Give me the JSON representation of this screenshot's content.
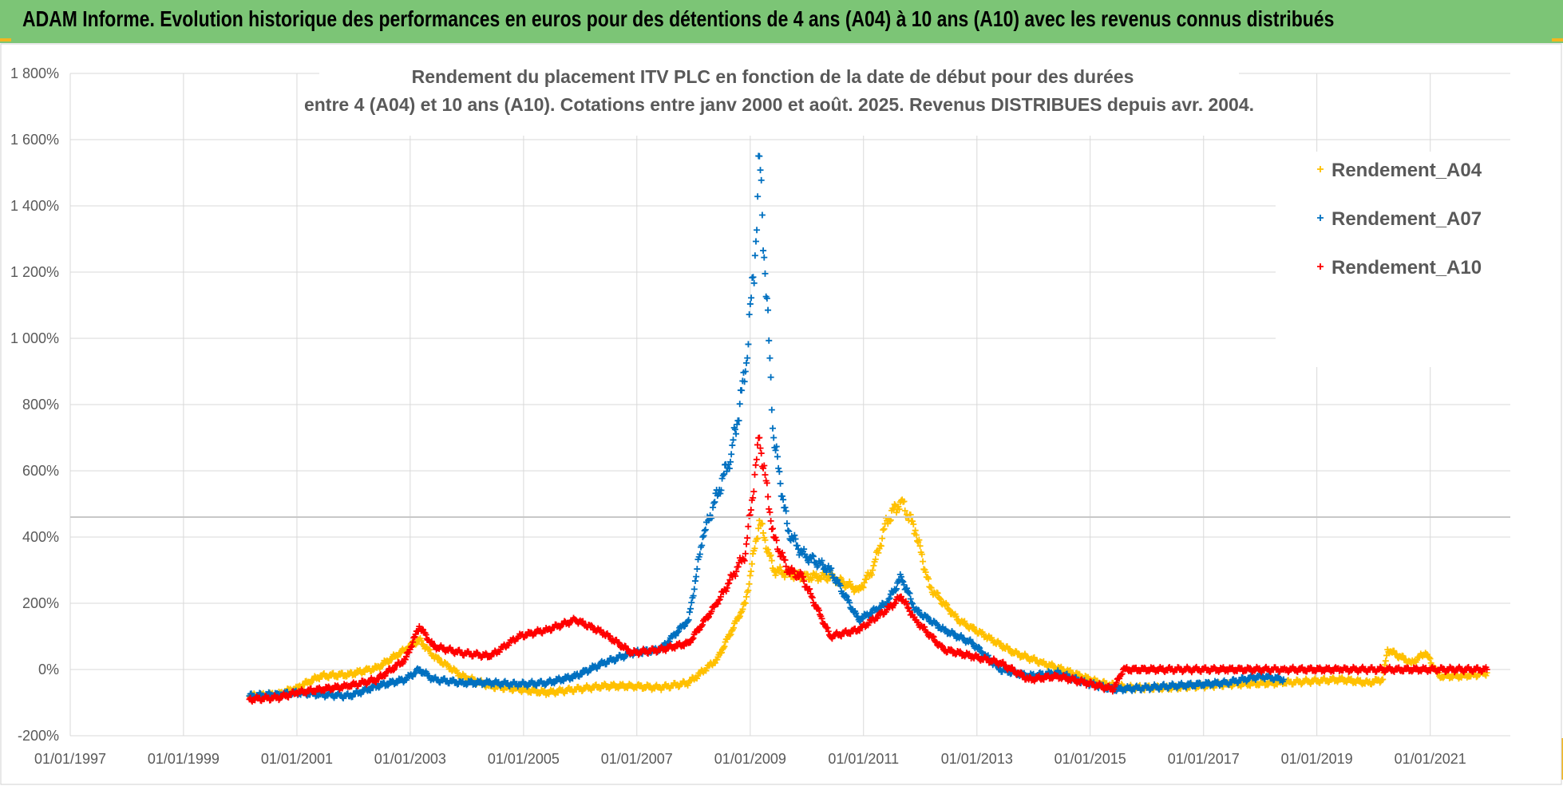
{
  "header": {
    "banner_title": "ADAM Informe. Evolution historique des performances en euros pour des détentions de 4 ans (A04) à 10 ans (A10) avec les revenus connus distribués"
  },
  "colors": {
    "banner_bg": "#7cc576",
    "accent": "#f2b61f",
    "A04": "#ffc000",
    "A07": "#0070c0",
    "A10": "#ff0000",
    "grid": "#d9d9d9",
    "text": "#595959"
  },
  "chart_data": {
    "type": "scatter",
    "title_line1": "Rendement du placement ITV PLC en fonction de la date de début pour des durées",
    "title_line2": "entre 4 (A04) et 10 ans (A10).  Cotations entre janv 2000 et août. 2025. Revenus DISTRIBUES depuis avr. 2004.",
    "xlabel": "",
    "ylabel": "",
    "xlim": [
      "1997-01-01",
      "2022-06-01"
    ],
    "ylim": [
      -200,
      1800
    ],
    "y_unit": "%",
    "x_tick_labels": [
      "01/01/1997",
      "01/01/1999",
      "01/01/2001",
      "01/01/2003",
      "01/01/2005",
      "01/01/2007",
      "01/01/2009",
      "01/01/2011",
      "01/01/2013",
      "01/01/2015",
      "01/01/2017",
      "01/01/2019",
      "01/01/2021"
    ],
    "y_tick_labels": [
      "-200%",
      "0%",
      "200%",
      "400%",
      "600%",
      "800%",
      "1 000%",
      "1 200%",
      "1 400%",
      "1 600%",
      "1 800%"
    ],
    "y_ticks": [
      -200,
      0,
      200,
      400,
      600,
      800,
      1000,
      1200,
      1400,
      1600,
      1800
    ],
    "grid": true,
    "marker": "+",
    "legend_position": "right",
    "series": [
      {
        "name": "Rendement_A04",
        "color": "#ffc000",
        "points": [
          [
            "2000-03-01",
            -80
          ],
          [
            "2000-09-01",
            -75
          ],
          [
            "2001-01-01",
            -55
          ],
          [
            "2001-06-01",
            -20
          ],
          [
            "2001-12-01",
            -15
          ],
          [
            "2002-06-01",
            5
          ],
          [
            "2002-12-01",
            60
          ],
          [
            "2003-03-01",
            90
          ],
          [
            "2003-06-01",
            40
          ],
          [
            "2003-12-01",
            -20
          ],
          [
            "2004-06-01",
            -50
          ],
          [
            "2004-12-01",
            -60
          ],
          [
            "2005-06-01",
            -70
          ],
          [
            "2005-12-01",
            -60
          ],
          [
            "2006-06-01",
            -50
          ],
          [
            "2006-12-01",
            -50
          ],
          [
            "2007-06-01",
            -55
          ],
          [
            "2007-12-01",
            -40
          ],
          [
            "2008-06-01",
            30
          ],
          [
            "2008-12-01",
            200
          ],
          [
            "2009-03-01",
            450
          ],
          [
            "2009-06-01",
            300
          ],
          [
            "2009-12-01",
            280
          ],
          [
            "2010-06-01",
            280
          ],
          [
            "2010-12-01",
            240
          ],
          [
            "2011-03-01",
            300
          ],
          [
            "2011-06-01",
            450
          ],
          [
            "2011-09-01",
            510
          ],
          [
            "2011-12-01",
            420
          ],
          [
            "2012-03-01",
            250
          ],
          [
            "2012-09-01",
            150
          ],
          [
            "2013-03-01",
            100
          ],
          [
            "2013-09-01",
            50
          ],
          [
            "2014-03-01",
            20
          ],
          [
            "2014-09-01",
            -10
          ],
          [
            "2015-03-01",
            -40
          ],
          [
            "2015-09-01",
            -55
          ],
          [
            "2016-06-01",
            -55
          ],
          [
            "2017-06-01",
            -45
          ],
          [
            "2018-06-01",
            -40
          ],
          [
            "2019-06-01",
            -30
          ],
          [
            "2019-12-01",
            -40
          ],
          [
            "2020-03-01",
            -30
          ],
          [
            "2020-04-01",
            60
          ],
          [
            "2020-09-01",
            20
          ],
          [
            "2020-12-01",
            50
          ],
          [
            "2021-03-01",
            -20
          ],
          [
            "2021-09-01",
            -20
          ],
          [
            "2022-01-01",
            -10
          ]
        ]
      },
      {
        "name": "Rendement_A07",
        "color": "#0070c0",
        "points": [
          [
            "2000-03-01",
            -80
          ],
          [
            "2000-09-01",
            -75
          ],
          [
            "2001-01-01",
            -70
          ],
          [
            "2001-06-01",
            -75
          ],
          [
            "2001-12-01",
            -80
          ],
          [
            "2002-06-01",
            -50
          ],
          [
            "2002-12-01",
            -30
          ],
          [
            "2003-03-01",
            0
          ],
          [
            "2003-06-01",
            -30
          ],
          [
            "2003-12-01",
            -40
          ],
          [
            "2004-06-01",
            -40
          ],
          [
            "2004-12-01",
            -45
          ],
          [
            "2005-06-01",
            -40
          ],
          [
            "2005-12-01",
            -20
          ],
          [
            "2006-06-01",
            20
          ],
          [
            "2006-12-01",
            50
          ],
          [
            "2007-06-01",
            60
          ],
          [
            "2007-12-01",
            150
          ],
          [
            "2008-03-01",
            400
          ],
          [
            "2008-09-01",
            650
          ],
          [
            "2008-12-01",
            900
          ],
          [
            "2009-02-01",
            1250
          ],
          [
            "2009-03-01",
            1550
          ],
          [
            "2009-06-01",
            700
          ],
          [
            "2009-09-01",
            420
          ],
          [
            "2009-12-01",
            350
          ],
          [
            "2010-06-01",
            300
          ],
          [
            "2010-12-01",
            150
          ],
          [
            "2011-06-01",
            200
          ],
          [
            "2011-09-01",
            280
          ],
          [
            "2011-12-01",
            180
          ],
          [
            "2012-06-01",
            120
          ],
          [
            "2012-12-01",
            80
          ],
          [
            "2013-06-01",
            0
          ],
          [
            "2013-12-01",
            -20
          ],
          [
            "2014-06-01",
            -10
          ],
          [
            "2014-12-01",
            -40
          ],
          [
            "2015-06-01",
            -60
          ],
          [
            "2016-01-01",
            -55
          ],
          [
            "2016-06-01",
            -50
          ],
          [
            "2017-06-01",
            -40
          ],
          [
            "2018-01-01",
            -20
          ],
          [
            "2018-06-01",
            -30
          ]
        ]
      },
      {
        "name": "Rendement_A10",
        "color": "#ff0000",
        "points": [
          [
            "2000-03-01",
            -90
          ],
          [
            "2000-09-01",
            -85
          ],
          [
            "2001-01-01",
            -70
          ],
          [
            "2001-06-01",
            -60
          ],
          [
            "2001-12-01",
            -50
          ],
          [
            "2002-06-01",
            -30
          ],
          [
            "2002-12-01",
            30
          ],
          [
            "2003-03-01",
            130
          ],
          [
            "2003-06-01",
            70
          ],
          [
            "2003-12-01",
            50
          ],
          [
            "2004-06-01",
            40
          ],
          [
            "2004-12-01",
            100
          ],
          [
            "2005-06-01",
            120
          ],
          [
            "2005-12-01",
            150
          ],
          [
            "2006-06-01",
            110
          ],
          [
            "2006-12-01",
            50
          ],
          [
            "2007-06-01",
            60
          ],
          [
            "2007-12-01",
            80
          ],
          [
            "2008-06-01",
            200
          ],
          [
            "2008-12-01",
            350
          ],
          [
            "2009-03-01",
            700
          ],
          [
            "2009-06-01",
            400
          ],
          [
            "2009-09-01",
            300
          ],
          [
            "2009-12-01",
            280
          ],
          [
            "2010-06-01",
            100
          ],
          [
            "2010-12-01",
            120
          ],
          [
            "2011-06-01",
            180
          ],
          [
            "2011-09-01",
            220
          ],
          [
            "2011-12-01",
            150
          ],
          [
            "2012-06-01",
            60
          ],
          [
            "2012-12-01",
            40
          ],
          [
            "2013-06-01",
            20
          ],
          [
            "2013-12-01",
            -30
          ],
          [
            "2014-06-01",
            -20
          ],
          [
            "2014-12-01",
            -40
          ],
          [
            "2015-06-01",
            -60
          ],
          [
            "2015-08-01",
            0
          ],
          [
            "2016-06-01",
            0
          ],
          [
            "2017-06-01",
            0
          ],
          [
            "2018-06-01",
            0
          ],
          [
            "2019-06-01",
            0
          ],
          [
            "2020-06-01",
            0
          ],
          [
            "2021-06-01",
            0
          ],
          [
            "2022-01-01",
            0
          ]
        ]
      }
    ]
  }
}
